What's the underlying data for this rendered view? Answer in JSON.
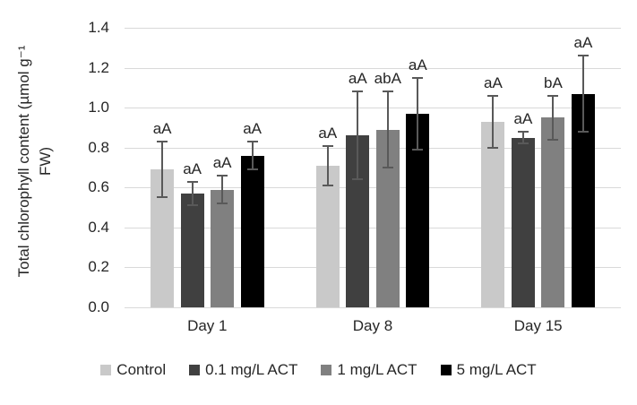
{
  "chart_data": {
    "type": "bar",
    "title": "",
    "y_axis": {
      "label": "Total chlorophyll content (µmol g⁻¹ FW)",
      "label_line1": "Total chlorophyll content (µmol g⁻¹",
      "label_line2": "FW)",
      "min": 0,
      "max": 1.4,
      "step": 0.2,
      "tick_labels": [
        "0.0",
        "0.2",
        "0.4",
        "0.6",
        "0.8",
        "1.0",
        "1.2",
        "1.4"
      ]
    },
    "categories": [
      "Day 1",
      "Day 8",
      "Day 15"
    ],
    "series": [
      {
        "name": "Control",
        "color": "#c9c9c9",
        "values": [
          0.69,
          0.71,
          0.93
        ],
        "errors": [
          0.14,
          0.1,
          0.13
        ],
        "sig_labels": [
          "aA",
          "aA",
          "aA"
        ]
      },
      {
        "name": "0.1 mg/L ACT",
        "color": "#404040",
        "values": [
          0.57,
          0.86,
          0.85
        ],
        "errors": [
          0.06,
          0.22,
          0.03
        ],
        "sig_labels": [
          "aA",
          "aA",
          "aA"
        ]
      },
      {
        "name": "1 mg/L ACT",
        "color": "#808080",
        "values": [
          0.59,
          0.89,
          0.95
        ],
        "errors": [
          0.07,
          0.19,
          0.11
        ],
        "sig_labels": [
          "aA",
          "abA",
          "bA"
        ]
      },
      {
        "name": "5 mg/L ACT",
        "color": "#000000",
        "values": [
          0.76,
          0.97,
          1.07
        ],
        "errors": [
          0.07,
          0.18,
          0.19
        ],
        "sig_labels": [
          "aA",
          "aA",
          "aA"
        ]
      }
    ],
    "error_bar_color": "#595959",
    "gridline_color": "#d9d9d9",
    "text_color": "#262626",
    "grid": true,
    "legend_position": "bottom"
  }
}
